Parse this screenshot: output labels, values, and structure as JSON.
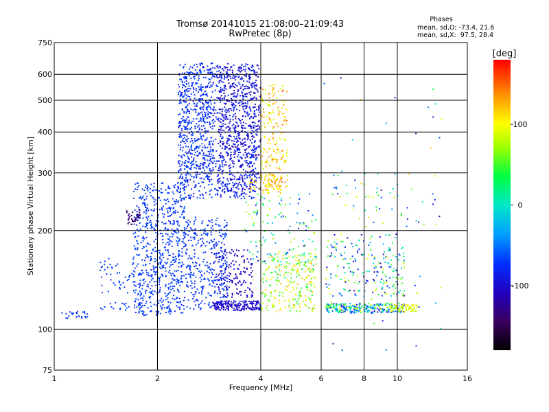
{
  "chart_data": {
    "type": "scatter",
    "title": "Tromsø 20141015 21:08:00–21:09:43",
    "subtitle": "RwPretec (8p)",
    "xlabel": "Frequency [MHz]",
    "ylabel": "Stationary phase Virtual Height [km]",
    "xscale": "log",
    "yscale": "log",
    "xlim": [
      1,
      16
    ],
    "ylim": [
      75,
      750
    ],
    "xticks": [
      1,
      2,
      4,
      6,
      8,
      10,
      16
    ],
    "xtick_labels": [
      "1",
      "2",
      "4",
      "6",
      "8",
      "10",
      "16"
    ],
    "yticks": [
      75,
      100,
      200,
      300,
      400,
      500,
      600,
      750
    ],
    "ytick_labels": [
      "75",
      "100",
      "200",
      "300",
      "400",
      "500",
      "600",
      "750"
    ],
    "grid": true,
    "stats": {
      "header": "Phases",
      "line_o": "mean, sd,O: -73.4, 21.6",
      "line_x": "mean, sd,X:  97.5, 28.4"
    },
    "colorbar": {
      "unit": "[deg]",
      "min": -180,
      "max": 180,
      "ticks": [
        100,
        0,
        -100
      ],
      "tick_labels": [
        "100",
        "0",
        "-100"
      ],
      "colormap": "rainbow"
    },
    "clusters": [
      {
        "x": [
          2.3,
          3.9
        ],
        "y": [
          250,
          650
        ],
        "phase": [
          -95,
          -65
        ],
        "n": 900
      },
      {
        "x": [
          2.3,
          2.9
        ],
        "y": [
          280,
          640
        ],
        "phase": [
          -80,
          -60
        ],
        "n": 300
      },
      {
        "x": [
          3.0,
          4.0
        ],
        "y": [
          260,
          640
        ],
        "phase": [
          -115,
          -90
        ],
        "n": 450
      },
      {
        "x": [
          1.7,
          2.4
        ],
        "y": [
          110,
          280
        ],
        "phase": [
          -80,
          -60
        ],
        "n": 700
      },
      {
        "x": [
          2.4,
          3.2
        ],
        "y": [
          115,
          220
        ],
        "phase": [
          -85,
          -60
        ],
        "n": 350
      },
      {
        "x": [
          1.35,
          1.75
        ],
        "y": [
          113,
          165
        ],
        "phase": [
          -78,
          -62
        ],
        "n": 60
      },
      {
        "x": [
          1.05,
          1.25
        ],
        "y": [
          108,
          114
        ],
        "phase": [
          -80,
          -65
        ],
        "n": 25
      },
      {
        "x": [
          1.62,
          1.78
        ],
        "y": [
          208,
          232
        ],
        "phase": [
          -155,
          -130
        ],
        "n": 35
      },
      {
        "x": [
          2.9,
          4.0
        ],
        "y": [
          114,
          122
        ],
        "phase": [
          -115,
          -90
        ],
        "n": 200
      },
      {
        "x": [
          2.9,
          3.8
        ],
        "y": [
          125,
          175
        ],
        "phase": [
          -120,
          -90
        ],
        "n": 150
      },
      {
        "x": [
          4.0,
          4.8
        ],
        "y": [
          260,
          560
        ],
        "phase": [
          80,
          150
        ],
        "n": 200
      },
      {
        "x": [
          3.7,
          4.6
        ],
        "y": [
          265,
          300
        ],
        "phase": [
          90,
          140
        ],
        "n": 60
      },
      {
        "x": [
          4.0,
          5.8
        ],
        "y": [
          113,
          170
        ],
        "phase": [
          20,
          130
        ],
        "n": 260
      },
      {
        "x": [
          3.6,
          5.8
        ],
        "y": [
          160,
          260
        ],
        "phase": [
          -100,
          100
        ],
        "n": 120
      },
      {
        "x": [
          6.2,
          10.5
        ],
        "y": [
          112,
          120
        ],
        "phase": [
          -100,
          110
        ],
        "n": 260
      },
      {
        "x": [
          6.2,
          10.5
        ],
        "y": [
          125,
          195
        ],
        "phase": [
          -120,
          100
        ],
        "n": 220
      },
      {
        "x": [
          9.5,
          11.5
        ],
        "y": [
          113,
          119
        ],
        "phase": [
          70,
          110
        ],
        "n": 60
      },
      {
        "x": [
          6.5,
          12.0
        ],
        "y": [
          205,
          300
        ],
        "phase": [
          -100,
          120
        ],
        "n": 50
      },
      {
        "x": [
          6.0,
          13.5
        ],
        "y": [
          80,
          600
        ],
        "phase": [
          -150,
          150
        ],
        "n": 50
      }
    ]
  }
}
